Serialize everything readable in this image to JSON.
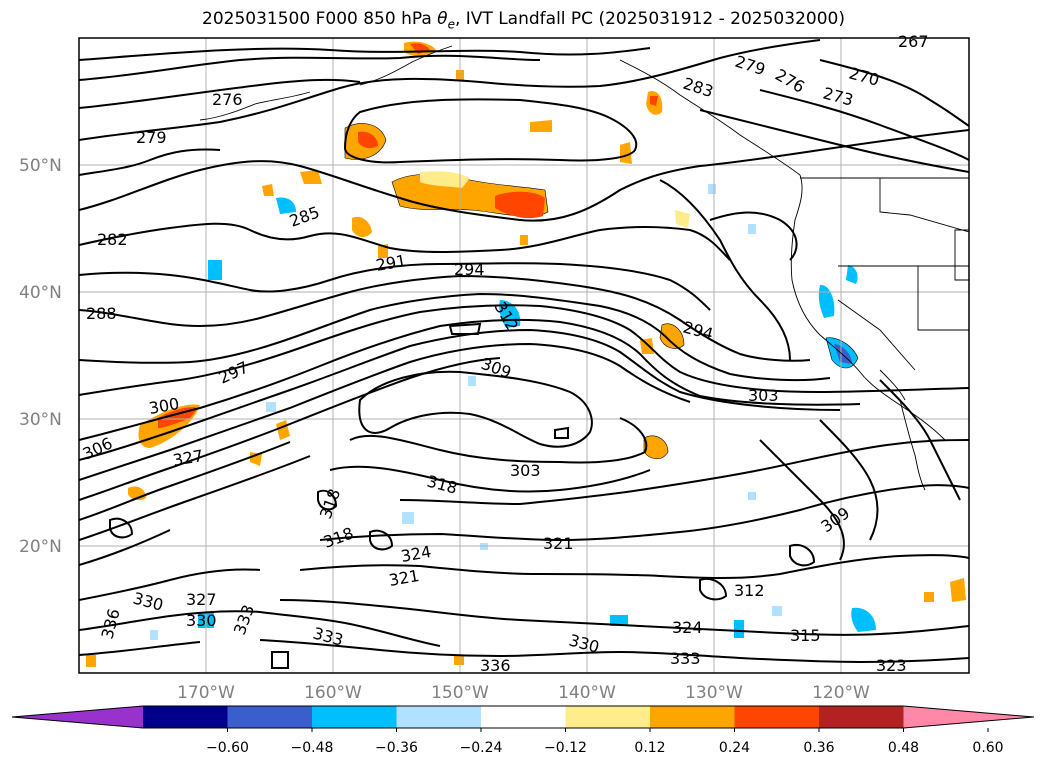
{
  "title": {
    "prefix": "2025031500 F000 850 hPa ",
    "theta": "θ",
    "sub": "e",
    "suffix": ", IVT Landfall PC (2025031912 - 2025032000)"
  },
  "map": {
    "lat_labels": [
      "50°N",
      "40°N",
      "30°N",
      "20°N"
    ],
    "lon_labels": [
      "170°W",
      "160°W",
      "150°W",
      "140°W",
      "130°W",
      "120°W"
    ],
    "contour_labels": [
      "267",
      "270",
      "273",
      "276",
      "279",
      "279",
      "276",
      "282",
      "283",
      "285",
      "288",
      "291",
      "294",
      "294",
      "297",
      "300",
      "303",
      "303",
      "306",
      "309",
      "309",
      "312",
      "312",
      "315",
      "318",
      "318",
      "321",
      "321",
      "324",
      "324",
      "327",
      "327",
      "330",
      "330",
      "330",
      "333",
      "333",
      "333",
      "336",
      "336",
      "323",
      "318"
    ]
  },
  "colorbar": {
    "colors": [
      "#9932cc",
      "#00008b",
      "#3a5fcd",
      "#00bfff",
      "#b0e2ff",
      "#ffffff",
      "#ffec8b",
      "#ffa500",
      "#ff4500",
      "#b22222",
      "#ff88a8"
    ],
    "ticks": [
      "−0.60",
      "−0.48",
      "−0.36",
      "−0.24",
      "−0.12",
      "0.12",
      "0.24",
      "0.36",
      "0.48",
      "0.60"
    ]
  }
}
